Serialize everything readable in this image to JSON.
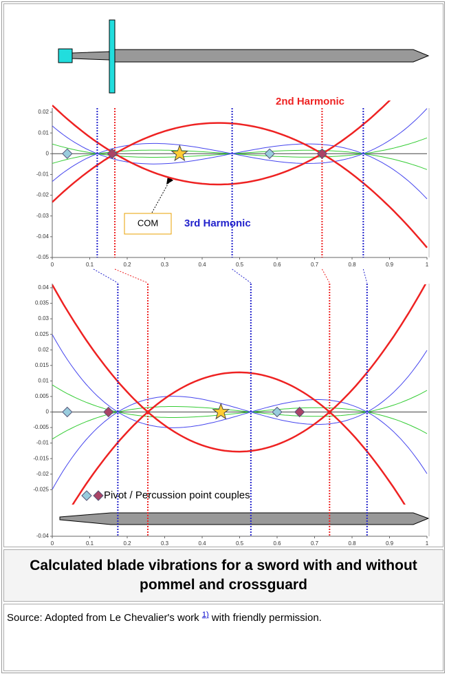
{
  "figure": {
    "top_chart": {
      "xlim": [
        0,
        1
      ],
      "ylim": [
        -0.05,
        0.02
      ],
      "xticks": [
        0,
        0.1,
        0.2,
        0.3,
        0.4,
        0.5,
        0.6,
        0.7,
        0.8,
        0.9,
        1
      ],
      "yticks": [
        0.02,
        0.01,
        0,
        -0.01,
        -0.02,
        -0.03,
        -0.04,
        -0.05
      ],
      "second_harmonic": "2nd Harmonic",
      "third_harmonic": "3rd Harmonic",
      "com": "COM"
    },
    "bottom_chart": {
      "xlim": [
        0,
        1
      ],
      "ylim": [
        -0.04,
        0.04
      ],
      "xticks": [
        0,
        0.1,
        0.2,
        0.3,
        0.4,
        0.5,
        0.6,
        0.7,
        0.8,
        0.9,
        1
      ],
      "yticks": [
        0.04,
        0.035,
        0.03,
        0.025,
        0.02,
        0.015,
        0.01,
        0.005,
        0,
        -0.005,
        -0.01,
        -0.015,
        -0.02,
        -0.025,
        -0.04
      ],
      "legend": "Pivot / Percussion point couples"
    }
  },
  "caption": "Calculated blade vibrations for a sword with and without pommel and crossguard",
  "source": {
    "text": "Source: Adopted from Le Chevalier's work",
    "footnote": "1)",
    "rest": "with friendly permission."
  }
}
